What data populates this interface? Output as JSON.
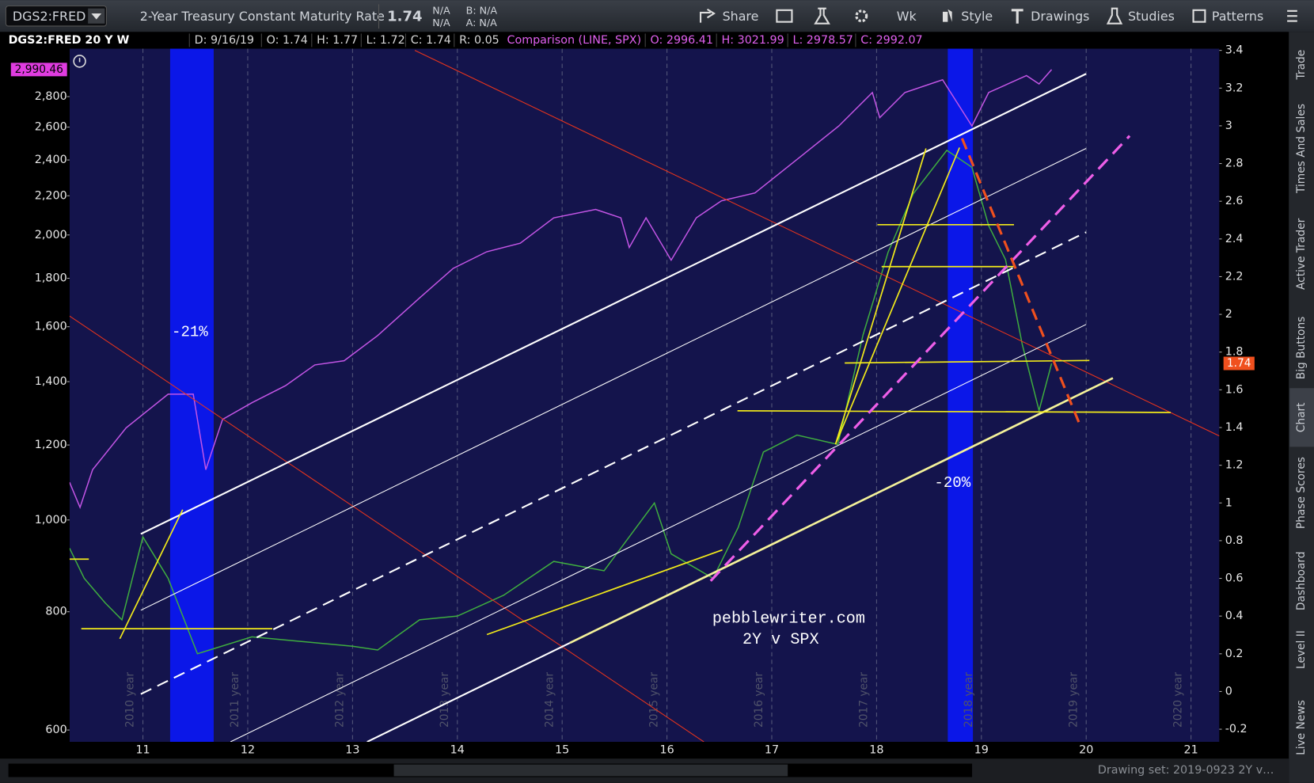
{
  "toolbar": {
    "symbol": "DGS2:FRED",
    "description": "2-Year Treasury Constant Maturity Rate",
    "last": "1.74",
    "change": "N/A",
    "change_pct": "N/A",
    "bid": "B: N/A",
    "ask": "A: N/A",
    "buttons": [
      "Share",
      "Wk",
      "Style",
      "Drawings",
      "Studies",
      "Patterns"
    ]
  },
  "quote_bar": {
    "study": "DGS2:FRED 20 Y W",
    "fields": [
      "D: 9/16/19",
      "O: 1.74",
      "H: 1.77",
      "L: 1.72",
      "C: 1.74",
      "R: 0.05"
    ],
    "comparison": "Comparison (LINE, SPX)",
    "comparison_fields": [
      "O: 2996.41",
      "H: 3021.99",
      "L: 2978.57",
      "C: 2992.07"
    ]
  },
  "side_tabs": [
    "Trade",
    "Times And Sales",
    "Active Trader",
    "Big Buttons",
    "Chart",
    "Phase Scores",
    "Dashboard",
    "Level II",
    "Live News"
  ],
  "footer": "Drawing set: 2019-0923 2Y v…",
  "chart_data": {
    "type": "line",
    "xlim": [
      10.3,
      21.27
    ],
    "xticks": [
      11,
      12,
      13,
      14,
      15,
      16,
      17,
      18,
      19,
      20,
      21
    ],
    "year_labels": [
      "2010 year",
      "2011 year",
      "2012 year",
      "2013 year",
      "2014 year",
      "2015 year",
      "2016 year",
      "2017 year",
      "2018 year",
      "2019 year",
      "2020 year"
    ],
    "yscale": "log",
    "ylim": [
      583,
      3146
    ],
    "yticks": [
      600,
      800,
      {
        "value": 1000,
        "label": "1,000"
      },
      {
        "value": 1200,
        "label": "1,200"
      },
      {
        "value": 1400,
        "label": "1,400"
      },
      {
        "value": 1600,
        "label": "1,600"
      },
      {
        "value": 1800,
        "label": "1,800"
      },
      {
        "value": 2000,
        "label": "2,000"
      },
      {
        "value": 2200,
        "label": "2,200"
      },
      {
        "value": 2400,
        "label": "2,400"
      },
      {
        "value": 2600,
        "label": "2,600"
      },
      {
        "value": 2800,
        "label": "2,800"
      }
    ],
    "y2lim": [
      -0.267,
      3.409
    ],
    "y2ticks": [
      -0.2,
      0,
      0.2,
      0.4,
      0.6,
      0.8,
      1,
      1.2,
      1.4,
      1.6,
      1.8,
      2,
      2.2,
      2.4,
      2.6,
      2.8,
      3,
      3.2,
      3.4
    ],
    "grid": true,
    "annotations": [
      "-21%",
      "-20%",
      "pebblewriter.com",
      "2Y v SPX"
    ],
    "series": [
      {
        "name": "SPX",
        "color": "#c455e6",
        "tag_color": "#e03ce0",
        "x": [
          10.3,
          10.4,
          10.52,
          10.84,
          11.24,
          11.48,
          11.6,
          11.76,
          12.04,
          12.36,
          12.64,
          12.92,
          13.24,
          13.64,
          13.96,
          14.28,
          14.6,
          14.92,
          15.32,
          15.56,
          15.64,
          15.8,
          16.04,
          16.28,
          16.52,
          16.84,
          17.24,
          17.64,
          17.96,
          18.03,
          18.27,
          18.63,
          18.91,
          19.07,
          19.43,
          19.55,
          19.67
        ],
        "values": [
          1096,
          1031,
          1130,
          1251,
          1358,
          1358,
          1130,
          1277,
          1330,
          1386,
          1458,
          1473,
          1566,
          1716,
          1844,
          1920,
          1960,
          2085,
          2128,
          2085,
          1940,
          2085,
          1881,
          2085,
          2173,
          2215,
          2403,
          2607,
          2828,
          2660,
          2828,
          2917,
          2607,
          2828,
          2947,
          2888,
          2990.46
        ],
        "tag": "2,990.46"
      },
      {
        "name": "DGS2:FRED",
        "axis": "y2",
        "color": "#3fae3f",
        "tag_color": "#f0501e",
        "x": [
          10.3,
          10.44,
          10.64,
          10.8,
          11.0,
          11.24,
          11.52,
          12.04,
          13.0,
          13.24,
          13.64,
          14.0,
          14.44,
          14.92,
          15.4,
          15.88,
          16.04,
          16.44,
          16.68,
          16.92,
          17.24,
          17.63,
          17.87,
          18.11,
          18.35,
          18.67,
          18.91,
          19.07,
          19.23,
          19.39,
          19.55,
          19.67
        ],
        "values": [
          0.76,
          0.6,
          0.47,
          0.38,
          0.82,
          0.6,
          0.2,
          0.29,
          0.24,
          0.22,
          0.38,
          0.4,
          0.51,
          0.69,
          0.64,
          1.0,
          0.73,
          0.6,
          0.87,
          1.27,
          1.36,
          1.31,
          1.89,
          2.33,
          2.64,
          2.87,
          2.78,
          2.47,
          2.29,
          1.84,
          1.49,
          1.74
        ],
        "tag": "1.74"
      }
    ]
  }
}
